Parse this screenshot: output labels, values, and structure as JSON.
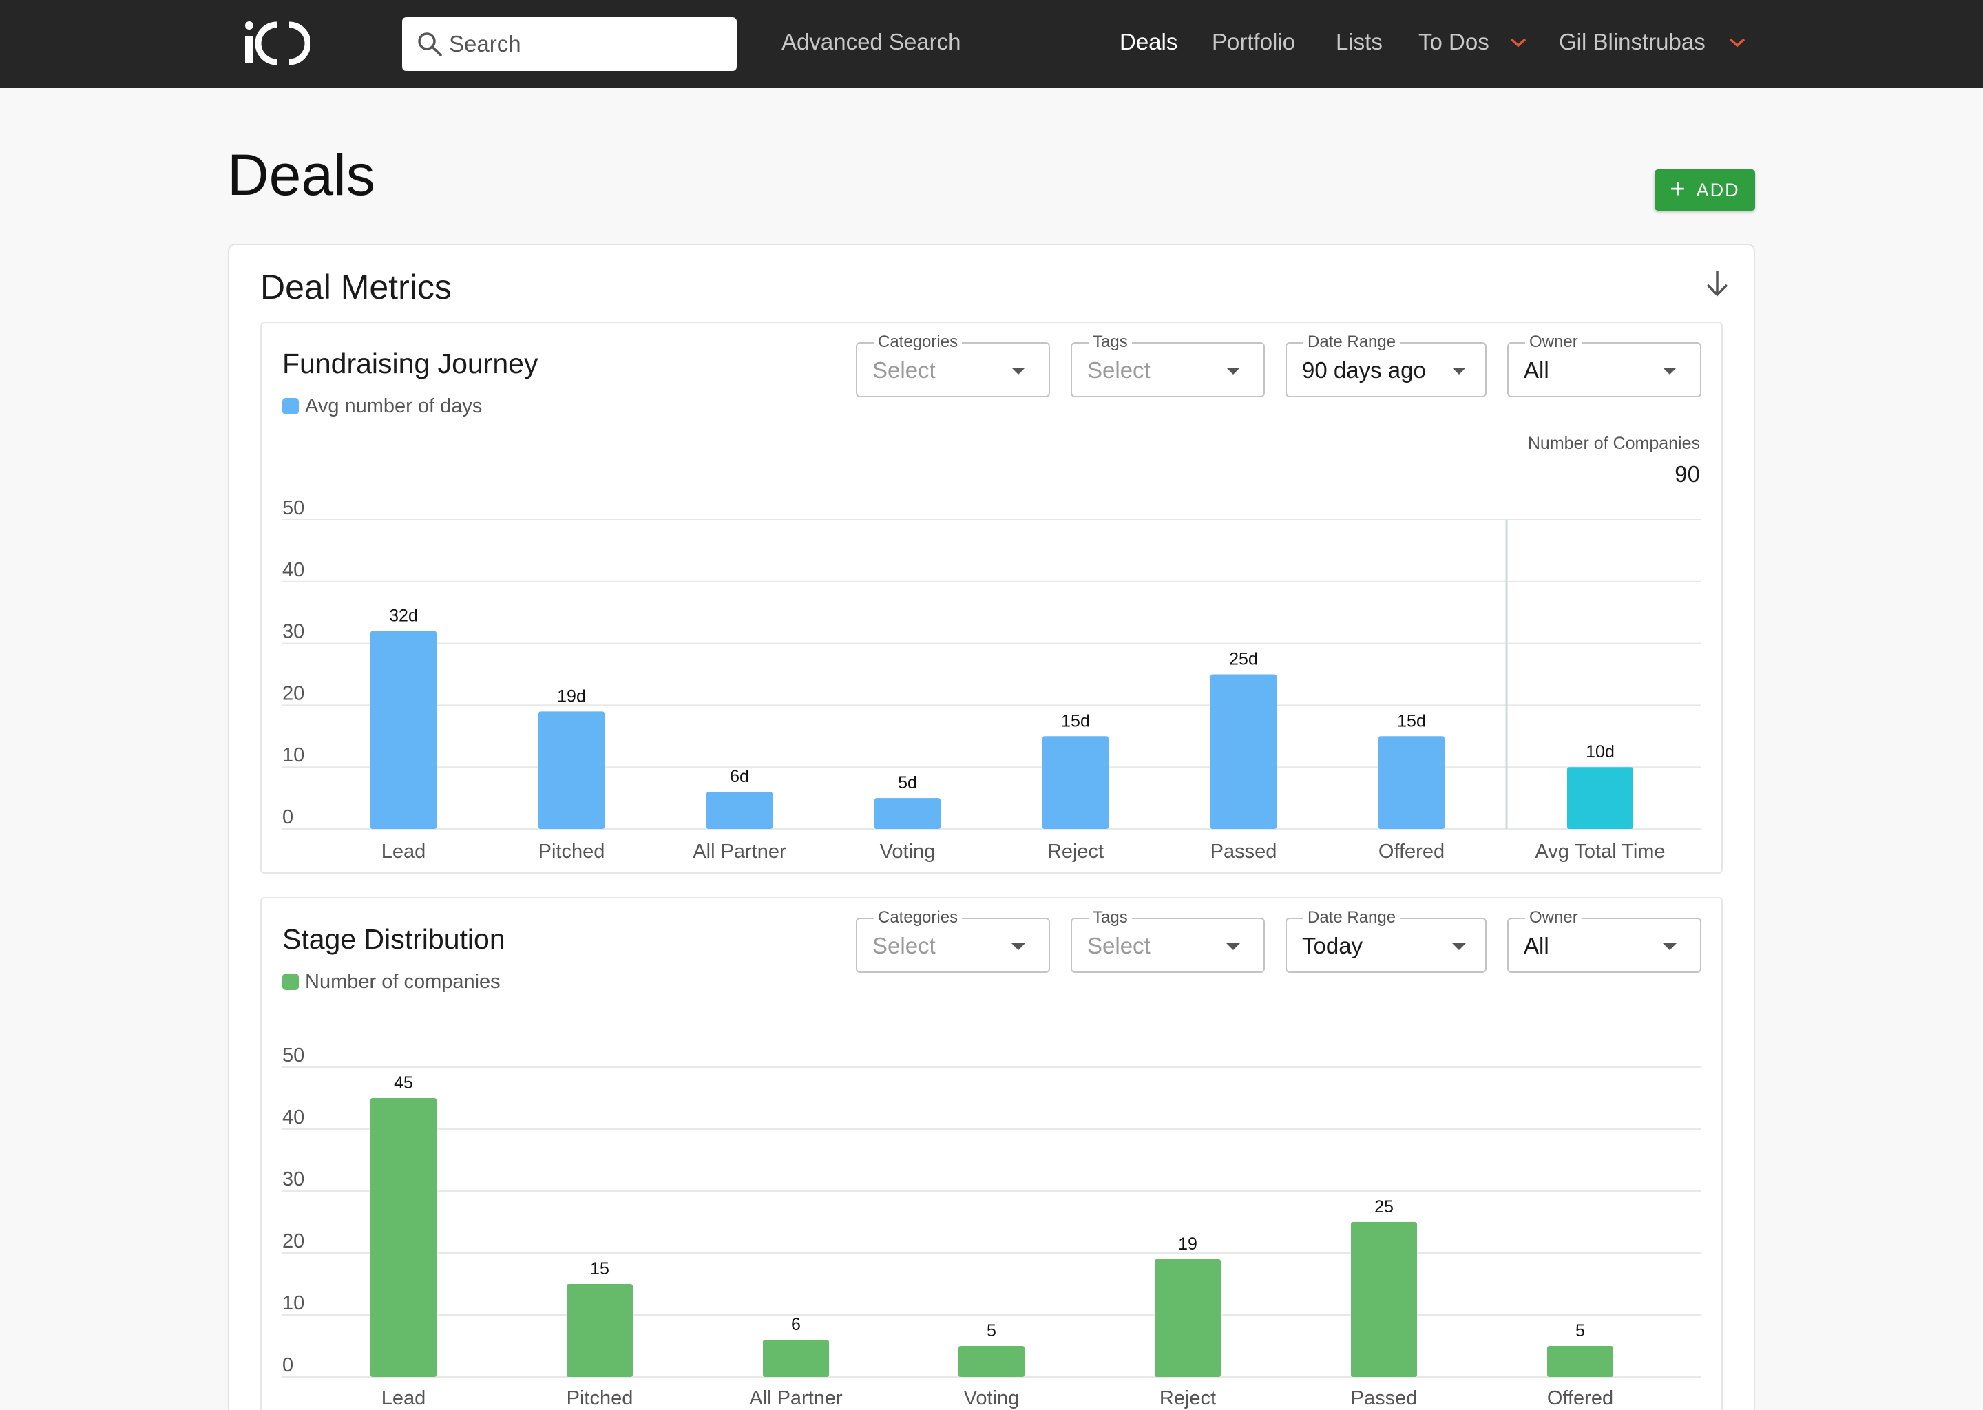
{
  "nav": {
    "search_placeholder": "Search",
    "advanced_search": "Advanced Search",
    "items": [
      {
        "label": "Deals",
        "active": true
      },
      {
        "label": "Portfolio",
        "active": false
      },
      {
        "label": "Lists",
        "active": false
      },
      {
        "label": "To Dos",
        "active": false,
        "dropdown": true
      },
      {
        "label": "Gil Blinstrubas",
        "active": false,
        "dropdown": true
      }
    ],
    "accent_color": "#e0573a"
  },
  "page": {
    "title": "Deals",
    "add_label": "ADD",
    "add_color": "#2e9e3e"
  },
  "metrics": {
    "title": "Deal Metrics"
  },
  "journey": {
    "title": "Fundraising Journey",
    "legend": "Avg number of days",
    "filters": {
      "categories": {
        "label": "Categories",
        "value": "Select"
      },
      "tags": {
        "label": "Tags",
        "value": "Select"
      },
      "date_range": {
        "label": "Date Range",
        "value": "90 days ago"
      },
      "owner": {
        "label": "Owner",
        "value": "All"
      }
    },
    "companies_label": "Number of Companies",
    "companies_value": "90"
  },
  "distribution": {
    "title": "Stage Distribution",
    "legend": "Number of companies",
    "filters": {
      "categories": {
        "label": "Categories",
        "value": "Select"
      },
      "tags": {
        "label": "Tags",
        "value": "Select"
      },
      "date_range": {
        "label": "Date Range",
        "value": "Today"
      },
      "owner": {
        "label": "Owner",
        "value": "All"
      }
    }
  },
  "chart_data": [
    {
      "type": "bar",
      "title": "Fundraising Journey",
      "categories": [
        "Lead",
        "Pitched",
        "All Partner",
        "Voting",
        "Reject",
        "Passed",
        "Offered",
        "Avg Total Time"
      ],
      "values": [
        32,
        19,
        6,
        5,
        15,
        25,
        15,
        10
      ],
      "data_labels": [
        "32d",
        "19d",
        "6d",
        "5d",
        "15d",
        "25d",
        "15d",
        "10d"
      ],
      "series": [
        {
          "name": "Avg number of days",
          "values": [
            32,
            19,
            6,
            5,
            15,
            25,
            15,
            10
          ]
        }
      ],
      "yticks": [
        "0",
        "10",
        "20",
        "30",
        "40",
        "50"
      ],
      "ylim": [
        0,
        50
      ],
      "grid": true,
      "colors": {
        "bar": "#64b5f6",
        "highlight": "#26c6da"
      },
      "highlight_last": true
    },
    {
      "type": "bar",
      "title": "Stage Distribution",
      "categories": [
        "Lead",
        "Pitched",
        "All Partner",
        "Voting",
        "Reject",
        "Passed",
        "Offered"
      ],
      "values": [
        45,
        15,
        6,
        5,
        19,
        25,
        5
      ],
      "data_labels": [
        "45",
        "15",
        "6",
        "5",
        "19",
        "25",
        "5"
      ],
      "series": [
        {
          "name": "Number of companies",
          "values": [
            45,
            15,
            6,
            5,
            19,
            25,
            5
          ]
        }
      ],
      "yticks": [
        "0",
        "10",
        "20",
        "30",
        "40",
        "50"
      ],
      "ylim": [
        0,
        50
      ],
      "grid": true,
      "colors": {
        "bar": "#66bb6a"
      }
    }
  ]
}
